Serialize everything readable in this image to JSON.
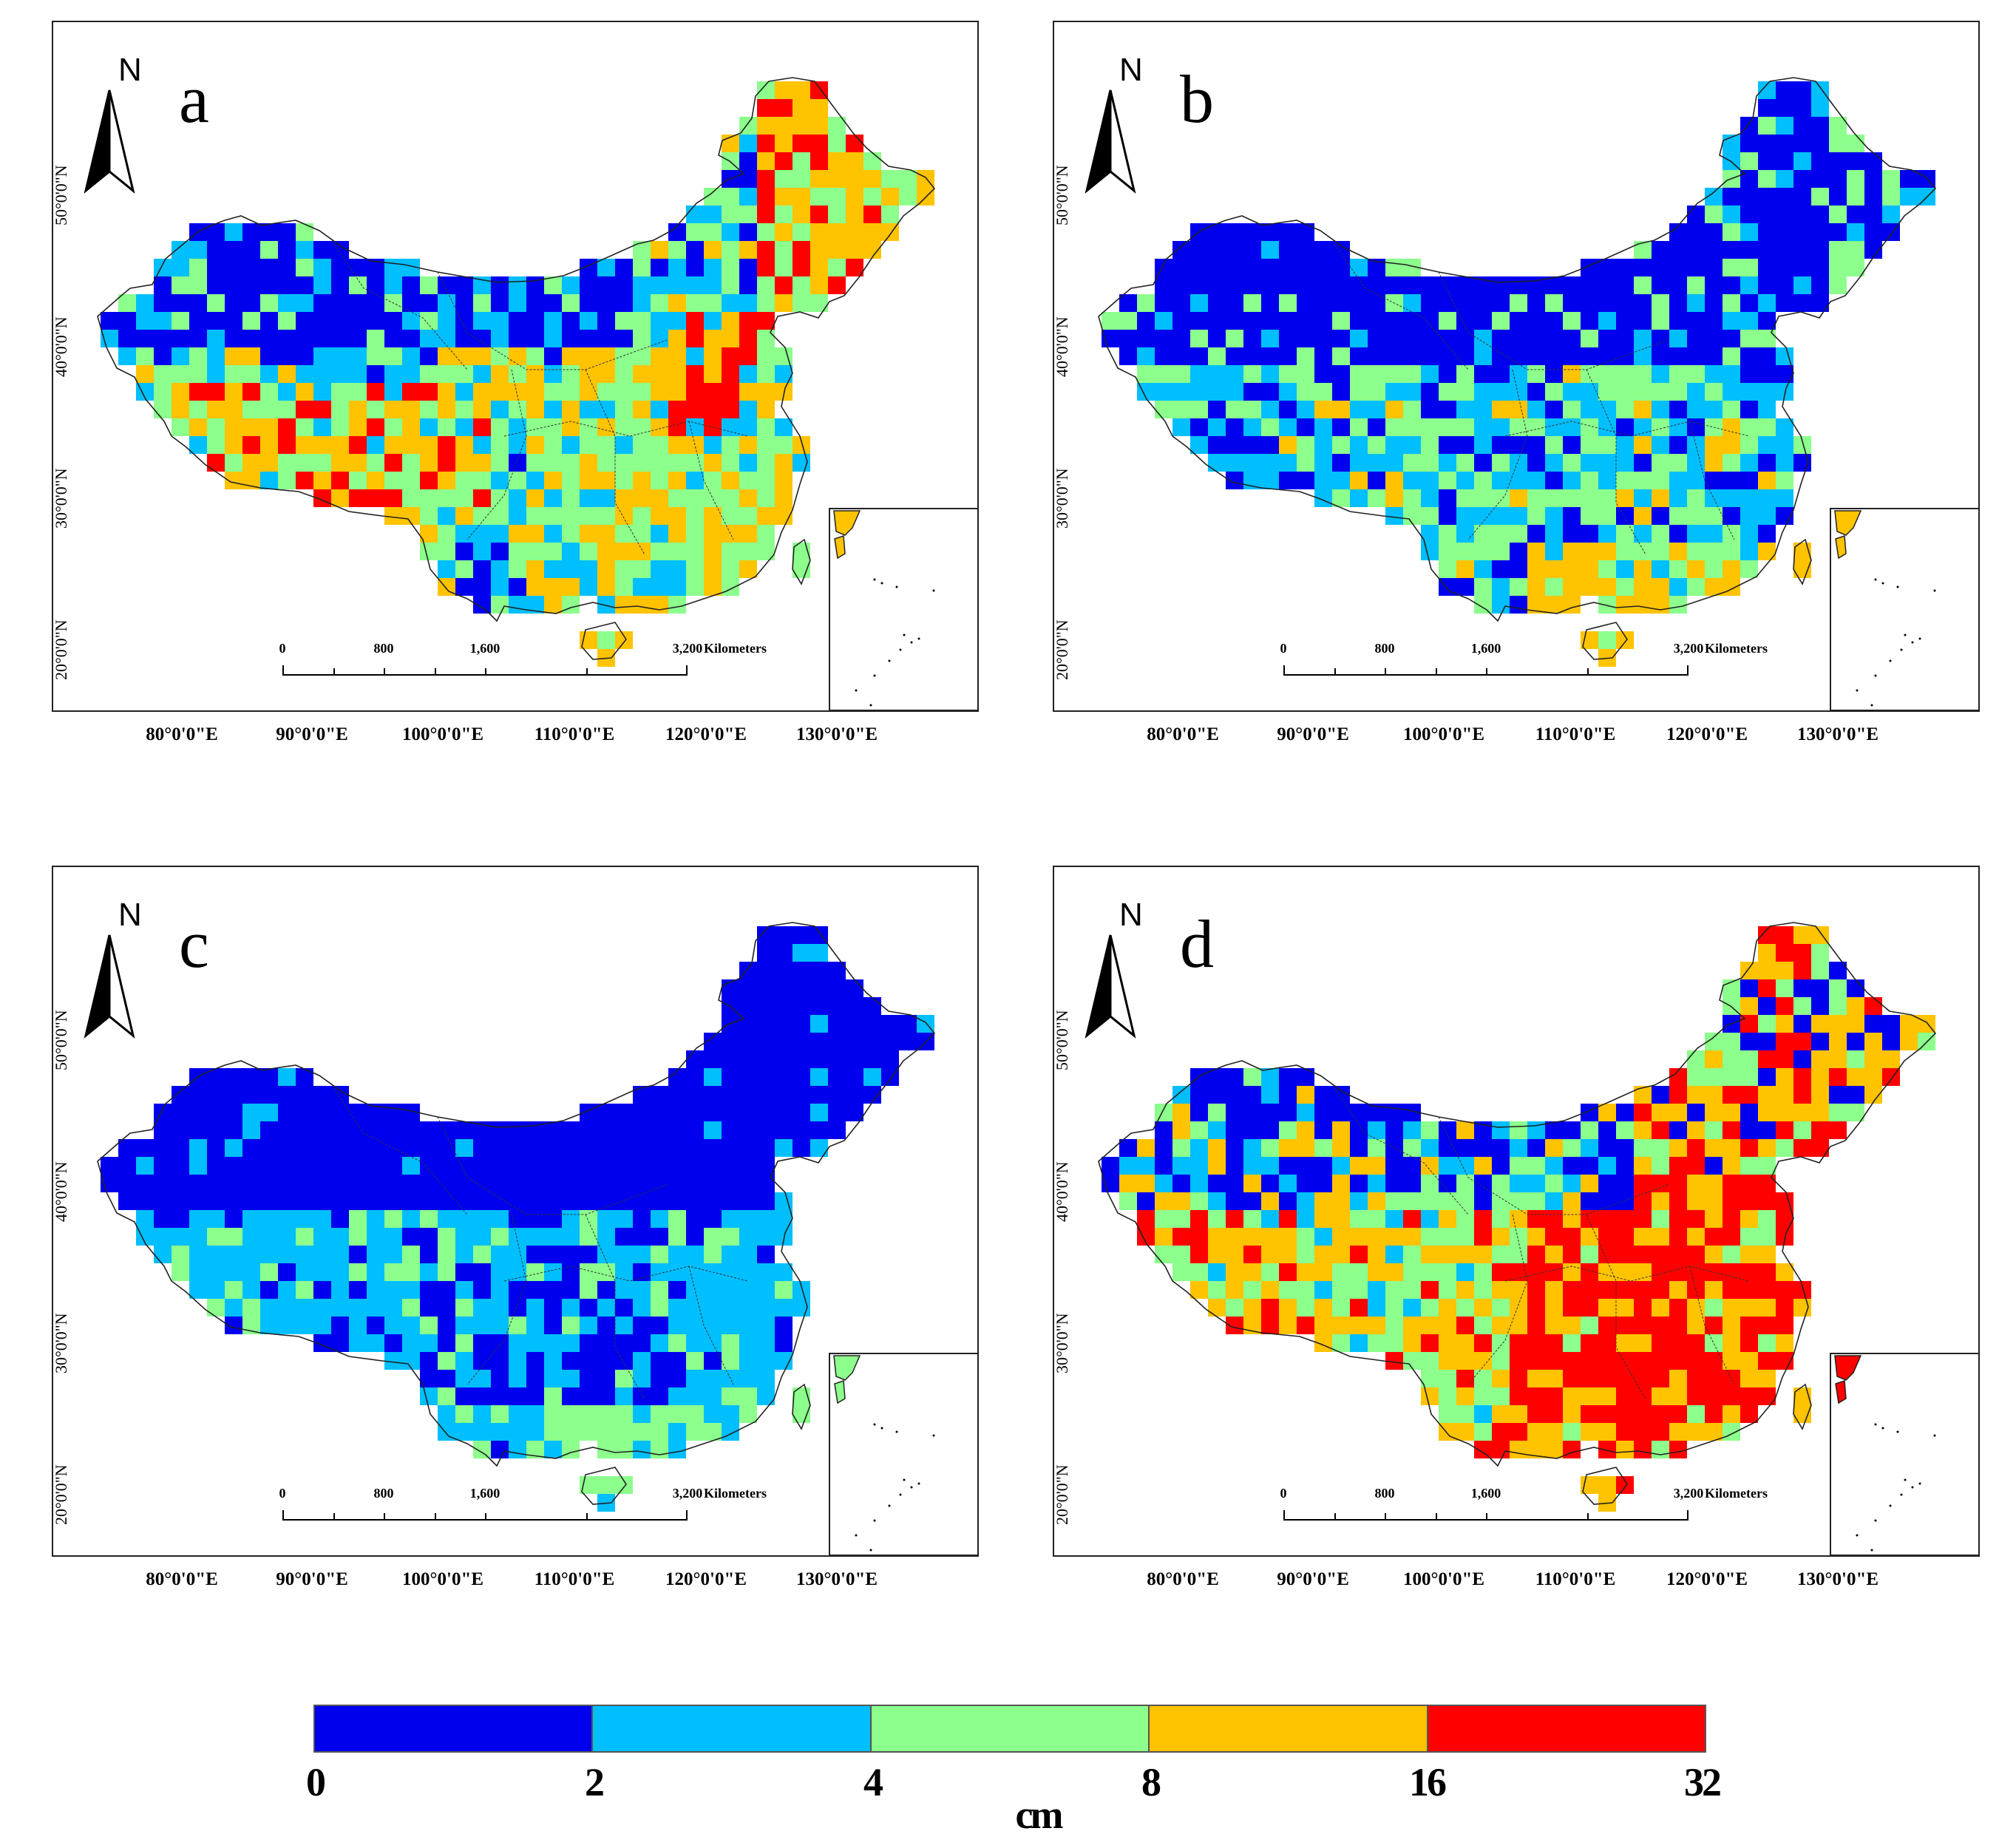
{
  "figure": {
    "panels": [
      {
        "letter": "a",
        "pattern": "a"
      },
      {
        "letter": "b",
        "pattern": "b"
      },
      {
        "letter": "c",
        "pattern": "c"
      },
      {
        "letter": "d",
        "pattern": "d"
      }
    ],
    "north_label": "N",
    "latitude_labels": [
      "50°0'0\"N",
      "40°0'0\"N",
      "30°0'0\"N",
      "20°0'0\"N"
    ],
    "longitude_labels": [
      "80°0'0\"E",
      "90°0'0\"E",
      "100°0'0\"E",
      "110°0'0\"E",
      "120°0'0\"E",
      "130°0'0\"E"
    ],
    "scale_bar": {
      "ticks": [
        "0",
        "800",
        "1,600",
        "3,200"
      ],
      "unit": "Kilometers"
    }
  },
  "legend": {
    "unit": "cm",
    "breaks": [
      "0",
      "2",
      "4",
      "8",
      "16",
      "32"
    ],
    "classes": [
      {
        "range": "0-2",
        "color": "#0000ee"
      },
      {
        "range": "2-4",
        "color": "#00bfff"
      },
      {
        "range": "4-8",
        "color": "#8cff8c"
      },
      {
        "range": "8-16",
        "color": "#ffc300"
      },
      {
        "range": "16-32",
        "color": "#ff0000"
      }
    ]
  }
}
